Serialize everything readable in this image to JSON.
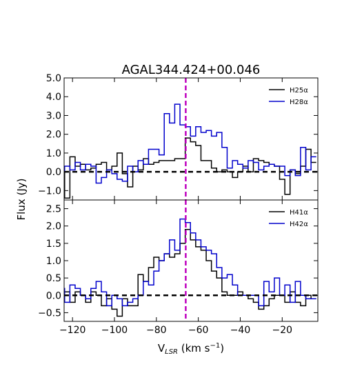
{
  "chart_data": {
    "type": "line",
    "title": "AGAL344.424+00.046",
    "xlabel": {
      "main": "V",
      "sub": "LSR",
      "rest": " (km s",
      "sup": "−1",
      "end": ")"
    },
    "ylabel": "Flux (Jy)",
    "xlim": [
      -124,
      -3
    ],
    "x_ticks": [
      -120,
      -100,
      -80,
      -60,
      -40,
      -20
    ],
    "x_tick_labels": [
      "−120",
      "−100",
      "−80",
      "−60",
      "−40",
      "−20"
    ],
    "vline": {
      "x": -66,
      "color": "#bf00bf"
    },
    "zero_line_color": "#000000",
    "panels": [
      {
        "ylim": [
          -1.5,
          5.0
        ],
        "y_ticks": [
          -1.0,
          0.0,
          1.0,
          2.0,
          3.0,
          4.0,
          5.0
        ],
        "y_tick_labels": [
          "−1.0",
          "0.0",
          "1.0",
          "2.0",
          "3.0",
          "4.0",
          "5.0"
        ],
        "legend": "top-right",
        "series": [
          {
            "name": "H25α",
            "color": "#000000",
            "step": 2.5,
            "x": [
              -125,
              -122.5,
              -120,
              -117.5,
              -115,
              -112.5,
              -110,
              -107.5,
              -105,
              -102.5,
              -100,
              -97.5,
              -95,
              -92.5,
              -90,
              -87.5,
              -85,
              -82.5,
              -80,
              -77.5,
              -75,
              -72.5,
              -70,
              -67.5,
              -65,
              -62.5,
              -60,
              -57.5,
              -55,
              -52.5,
              -50,
              -47.5,
              -45,
              -42.5,
              -40,
              -37.5,
              -35,
              -32.5,
              -30,
              -27.5,
              -25,
              -22.5,
              -20,
              -17.5,
              -15,
              -12.5,
              -10,
              -7.5,
              -5
            ],
            "y": [
              0.1,
              -1.4,
              0.8,
              0.3,
              0.4,
              0.1,
              0.2,
              0.4,
              0.5,
              0.1,
              0.3,
              1.0,
              -0.1,
              -0.8,
              0.3,
              0.1,
              0.7,
              0.4,
              0.5,
              0.6,
              0.6,
              0.6,
              0.7,
              0.7,
              1.8,
              1.6,
              1.4,
              0.6,
              0.6,
              0.2,
              0.0,
              0.1,
              0.0,
              -0.3,
              0.0,
              0.3,
              0.0,
              0.7,
              0.6,
              0.5,
              0.4,
              0.3,
              -0.4,
              -1.2,
              0.1,
              -0.1,
              0.3,
              1.2,
              0.5
            ]
          },
          {
            "name": "H28α",
            "color": "#0000cc",
            "step": 2.5,
            "x": [
              -125,
              -122.5,
              -120,
              -117.5,
              -115,
              -112.5,
              -110,
              -107.5,
              -105,
              -102.5,
              -100,
              -97.5,
              -95,
              -92.5,
              -90,
              -87.5,
              -85,
              -82.5,
              -80,
              -77.5,
              -75,
              -72.5,
              -70,
              -67.5,
              -65,
              -62.5,
              -60,
              -57.5,
              -55,
              -52.5,
              -50,
              -47.5,
              -45,
              -42.5,
              -40,
              -37.5,
              -35,
              -32.5,
              -30,
              -27.5,
              -25,
              -22.5,
              -20,
              -17.5,
              -15,
              -12.5,
              -10,
              -7.5,
              -5
            ],
            "y": [
              0.0,
              0.3,
              0.1,
              0.5,
              0.1,
              0.4,
              0.3,
              -0.6,
              -0.3,
              0.1,
              -0.1,
              -0.4,
              -0.5,
              0.3,
              0.0,
              0.6,
              0.4,
              1.2,
              1.2,
              0.9,
              3.1,
              2.6,
              3.6,
              2.5,
              2.4,
              1.9,
              2.4,
              2.1,
              2.2,
              1.9,
              2.1,
              1.3,
              0.2,
              0.6,
              0.4,
              0.2,
              0.6,
              0.5,
              0.1,
              0.3,
              0.4,
              0.3,
              0.3,
              -0.2,
              0.1,
              -0.2,
              1.3,
              0.1,
              0.8
            ]
          }
        ]
      },
      {
        "ylim": [
          -0.75,
          2.75
        ],
        "y_ticks": [
          -0.5,
          0.0,
          0.5,
          1.0,
          1.5,
          2.0,
          2.5
        ],
        "y_tick_labels": [
          "−0.5",
          "0.0",
          "0.5",
          "1.0",
          "1.5",
          "2.0",
          "2.5"
        ],
        "legend": "top-right",
        "series": [
          {
            "name": "H41α",
            "color": "#000000",
            "step": 2.5,
            "x": [
              -125,
              -122.5,
              -120,
              -117.5,
              -115,
              -112.5,
              -110,
              -107.5,
              -105,
              -102.5,
              -100,
              -97.5,
              -95,
              -92.5,
              -90,
              -87.5,
              -85,
              -82.5,
              -80,
              -77.5,
              -75,
              -72.5,
              -70,
              -67.5,
              -65,
              -62.5,
              -60,
              -57.5,
              -55,
              -52.5,
              -50,
              -47.5,
              -45,
              -42.5,
              -40,
              -37.5,
              -35,
              -32.5,
              -30,
              -27.5,
              -25,
              -22.5,
              -20,
              -17.5,
              -15,
              -12.5,
              -10,
              -7.5,
              -5
            ],
            "y": [
              -0.1,
              0.1,
              -0.2,
              0.1,
              0.0,
              -0.2,
              0.1,
              0.0,
              -0.3,
              -0.1,
              -0.4,
              -0.6,
              -0.1,
              -0.3,
              -0.3,
              0.6,
              0.4,
              0.8,
              1.1,
              1.0,
              1.2,
              1.1,
              1.2,
              1.5,
              1.9,
              1.6,
              1.4,
              1.3,
              1.0,
              0.7,
              0.5,
              0.1,
              0.0,
              0.0,
              0.1,
              0.0,
              -0.1,
              -0.2,
              -0.4,
              -0.3,
              -0.1,
              0.0,
              0.0,
              -0.2,
              0.1,
              -0.2,
              -0.3,
              0.0,
              -0.1
            ]
          },
          {
            "name": "H42α",
            "color": "#0000cc",
            "step": 2.5,
            "x": [
              -125,
              -122.5,
              -120,
              -117.5,
              -115,
              -112.5,
              -110,
              -107.5,
              -105,
              -102.5,
              -100,
              -97.5,
              -95,
              -92.5,
              -90,
              -87.5,
              -85,
              -82.5,
              -80,
              -77.5,
              -75,
              -72.5,
              -70,
              -67.5,
              -65,
              -62.5,
              -60,
              -57.5,
              -55,
              -52.5,
              -50,
              -47.5,
              -45,
              -42.5,
              -40,
              -37.5,
              -35,
              -32.5,
              -30,
              -27.5,
              -25,
              -22.5,
              -20,
              -17.5,
              -15,
              -12.5,
              -10,
              -7.5,
              -5
            ],
            "y": [
              0.2,
              -0.2,
              0.3,
              0.2,
              0.0,
              -0.1,
              0.2,
              0.4,
              0.1,
              -0.3,
              0.0,
              -0.1,
              -0.3,
              -0.2,
              -0.1,
              0.0,
              0.4,
              0.3,
              0.7,
              1.0,
              1.2,
              1.6,
              1.3,
              2.2,
              2.1,
              1.8,
              1.6,
              1.4,
              1.3,
              1.2,
              0.8,
              0.5,
              0.6,
              0.3,
              0.0,
              0.0,
              0.0,
              0.0,
              -0.3,
              0.4,
              0.1,
              0.5,
              0.0,
              0.3,
              -0.2,
              0.4,
              0.0,
              -0.1,
              -0.1
            ]
          }
        ]
      }
    ]
  }
}
